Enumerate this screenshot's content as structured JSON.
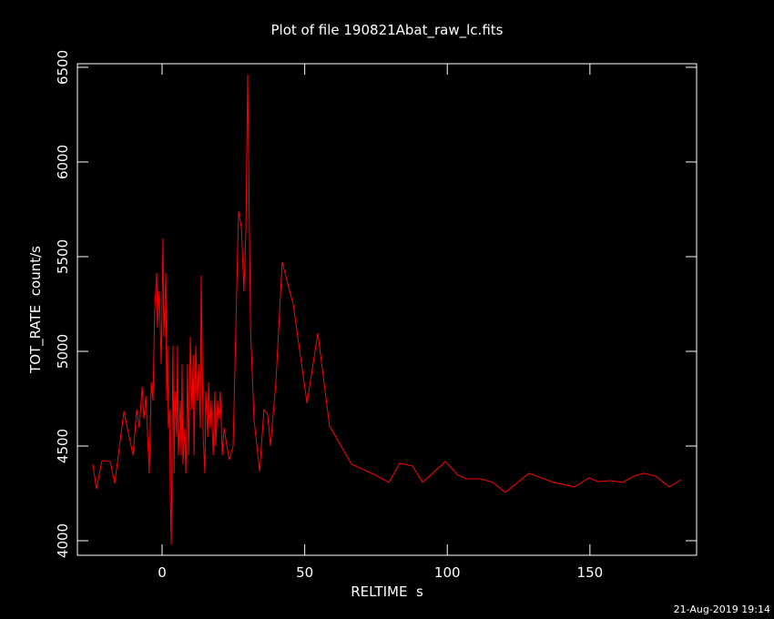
{
  "chart_data": {
    "type": "line",
    "title": "Plot of file 190821Abat_raw_lc.fits",
    "x_label": "RELTIME  s",
    "y_label": "TOT_RATE  count/s",
    "footer": "21-Aug-2019 19:14",
    "color": "#ff0000",
    "xlim": [
      -29.7,
      187.4
    ],
    "ylim": [
      3923,
      6519
    ],
    "xticks": [
      0,
      50,
      100,
      150
    ],
    "yticks": [
      4000,
      4500,
      5000,
      5500,
      6000,
      6500
    ],
    "x": [
      -24.3,
      -23.0,
      -21.1,
      -18.2,
      -16.6,
      -13.4,
      -10.2,
      -8.9,
      -8.0,
      -7.0,
      -6.4,
      -5.7,
      -5.1,
      -4.5,
      -3.8,
      -3.2,
      -2.6,
      -1.9,
      -1.6,
      -1.0,
      -0.3,
      0,
      0.3,
      0.6,
      1.3,
      1.6,
      1.9,
      2.2,
      2.6,
      2.9,
      3.2,
      3.5,
      3.8,
      4.2,
      4.5,
      5.1,
      5.4,
      5.7,
      6.4,
      6.7,
      7.0,
      7.3,
      8.0,
      8.3,
      8.6,
      8.9,
      9.3,
      9.9,
      10.5,
      10.9,
      11.2,
      11.8,
      12.4,
      12.8,
      13.4,
      13.7,
      14.4,
      15.0,
      15.3,
      16.0,
      16.3,
      16.9,
      17.2,
      17.9,
      18.5,
      18.8,
      19.5,
      19.8,
      20.4,
      21.1,
      21.7,
      22.7,
      23.6,
      24.9,
      26.8,
      27.8,
      28.7,
      29.4,
      30.0,
      31.0,
      32.2,
      34.2,
      35.7,
      37.0,
      38.0,
      39.9,
      42.1,
      46.0,
      50.8,
      54.6,
      58.7,
      66.4,
      74.1,
      79.5,
      83.3,
      87.8,
      91.3,
      99.3,
      103.7,
      106.6,
      111.7,
      115.9,
      120.3,
      128.6,
      137.2,
      144.6,
      149.6,
      152.9,
      157.0,
      161.5,
      165.3,
      168.8,
      173.0,
      177.8,
      181.9
    ],
    "values": [
      4404,
      4274,
      4423,
      4418,
      4303,
      4683,
      4452,
      4692,
      4596,
      4812,
      4644,
      4764,
      4558,
      4356,
      4837,
      4740,
      5221,
      5413,
      5125,
      5317,
      4933,
      5269,
      5596,
      5077,
      5413,
      4740,
      5029,
      4596,
      4692,
      4212,
      3981,
      4500,
      5029,
      4356,
      4788,
      4548,
      5029,
      4452,
      4740,
      4452,
      4933,
      4404,
      4596,
      4356,
      4548,
      4933,
      4452,
      5077,
      4692,
      4981,
      4452,
      5029,
      4740,
      4933,
      4596,
      5399,
      4548,
      4356,
      4788,
      4548,
      4837,
      4596,
      4740,
      4452,
      4788,
      4500,
      4740,
      4644,
      4788,
      4452,
      4596,
      4500,
      4428,
      4500,
      5740,
      5654,
      5317,
      5654,
      6462,
      5125,
      4644,
      4365,
      4692,
      4668,
      4500,
      4837,
      5471,
      5245,
      4726,
      5096,
      4606,
      4404,
      4351,
      4308,
      4409,
      4394,
      4308,
      4418,
      4346,
      4327,
      4327,
      4308,
      4255,
      4356,
      4308,
      4284,
      4332,
      4312,
      4317,
      4308,
      4341,
      4356,
      4341,
      4284,
      4322
    ]
  }
}
